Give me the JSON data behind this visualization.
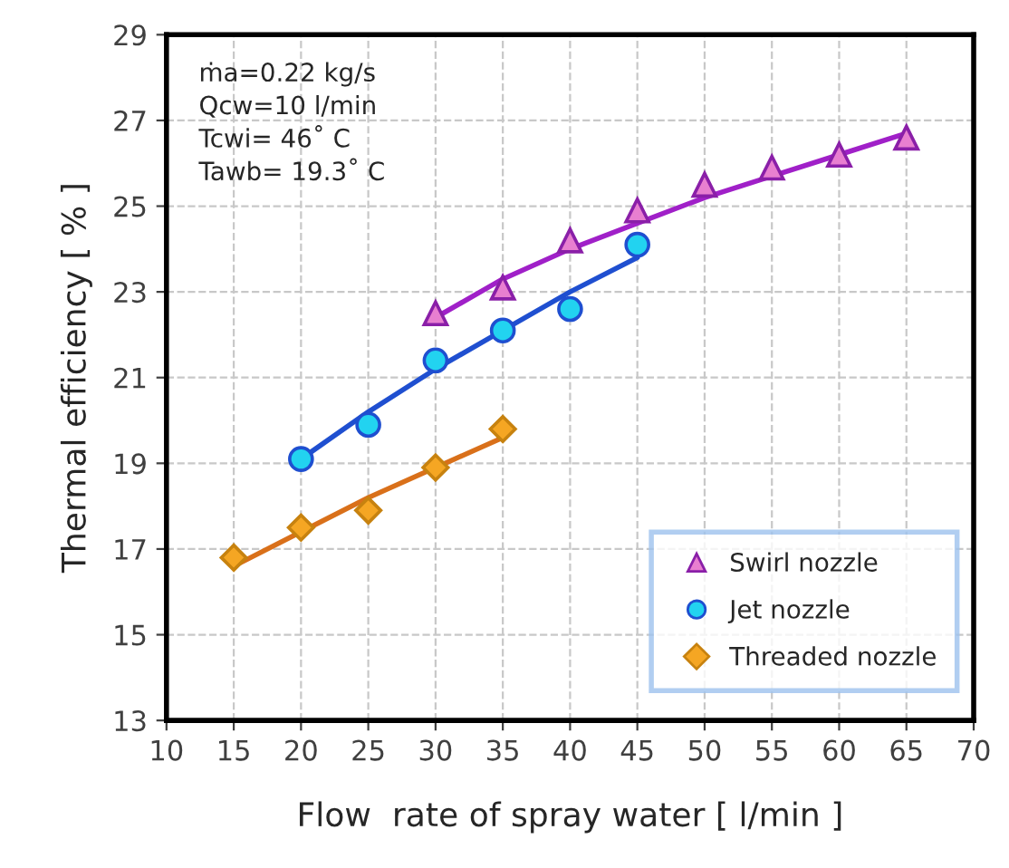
{
  "chart_data": {
    "type": "scatter",
    "xlabel": "Flow  rate of spray water [ l/min ]",
    "ylabel": "Thermal efficiency [ % ]",
    "annotations": [
      "ṁa=0.22 kg/s",
      "Qcw=10 l/min",
      "Tcwi= 46˚ C",
      "Tawb= 19.3˚ C"
    ],
    "series": [
      {
        "name": "Swirl nozzle",
        "marker": "triangle",
        "color": "#e87fd0",
        "x": [
          30,
          35,
          40,
          45,
          50,
          55,
          60,
          65
        ],
        "values": [
          22.5,
          23.1,
          24.2,
          24.9,
          25.5,
          25.9,
          26.2,
          26.6
        ]
      },
      {
        "name": "Jet nozzle",
        "marker": "circle",
        "color": "#22d3f0",
        "x": [
          20,
          25,
          30,
          35,
          40,
          45
        ],
        "values": [
          19.1,
          19.9,
          21.4,
          22.1,
          22.6,
          24.1
        ]
      },
      {
        "name": "Threaded nozzle",
        "marker": "diamond",
        "color": "#f5a623",
        "x": [
          15,
          20,
          25,
          30,
          35
        ],
        "values": [
          16.8,
          17.5,
          17.9,
          18.9,
          19.8
        ]
      },
      {
        "type": "line",
        "color": "#a020c8",
        "x": [
          30,
          35,
          40,
          45,
          50,
          55,
          60,
          65
        ],
        "values": [
          22.4,
          23.3,
          24.0,
          24.6,
          25.2,
          25.7,
          26.2,
          26.7
        ]
      },
      {
        "type": "line",
        "color": "#1f4fd0",
        "x": [
          20,
          25,
          30,
          35,
          40,
          45
        ],
        "values": [
          19.1,
          20.2,
          21.2,
          22.1,
          23.0,
          23.8
        ]
      },
      {
        "type": "line",
        "color": "#d9701a",
        "x": [
          15,
          20,
          25,
          30,
          35
        ],
        "values": [
          16.6,
          17.4,
          18.2,
          18.9,
          19.6
        ]
      }
    ],
    "xlim": [
      10,
      70
    ],
    "xticks": [
      10,
      15,
      20,
      25,
      30,
      35,
      40,
      45,
      50,
      55,
      60,
      65,
      70
    ],
    "ylim": [
      13,
      29
    ],
    "yticks": [
      13,
      15,
      17,
      19,
      21,
      23,
      25,
      27,
      29
    ],
    "grid": true,
    "legend": "bottom right"
  }
}
